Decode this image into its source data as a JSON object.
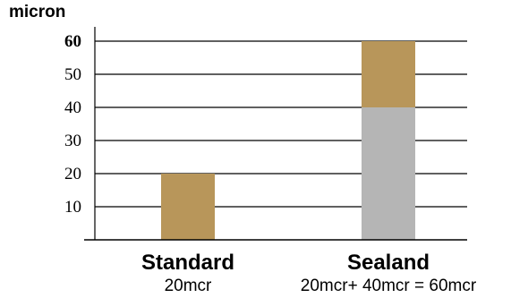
{
  "chart_data": {
    "type": "bar",
    "stacked": true,
    "ylabel": "micron",
    "ylim": [
      0,
      65
    ],
    "yticks": [
      10,
      20,
      30,
      40,
      50,
      60
    ],
    "grid": true,
    "categories": [
      "Standard",
      "Sealand"
    ],
    "category_subtitles": [
      "20mcr",
      "20mcr+ 40mcr = 60mcr"
    ],
    "series": [
      {
        "values": [
          0,
          40
        ],
        "color": "#b5b5b5"
      },
      {
        "values": [
          20,
          20
        ],
        "color": "#b8965a"
      }
    ]
  }
}
